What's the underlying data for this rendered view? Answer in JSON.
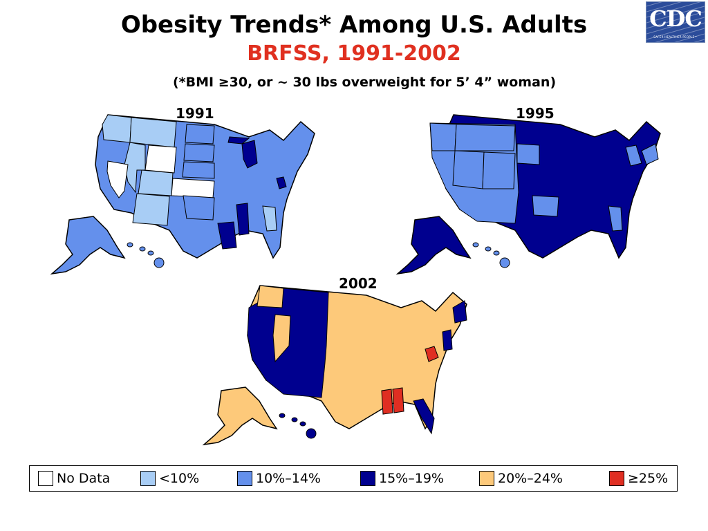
{
  "title": "Obesity Trends* Among U.S. Adults",
  "subtitle": "BRFSS, 1991-2002",
  "subtitle_color": "#e03020",
  "note": "(*BMI ≥30, or ~ 30 lbs overweight for 5’ 4” woman)",
  "logo": {
    "text": "CDC",
    "tagline": "SAFER·HEALTHIER·PEOPLE™",
    "color": "#2b4c9a"
  },
  "maps": [
    {
      "year": "1991"
    },
    {
      "year": "1995"
    },
    {
      "year": "2002"
    }
  ],
  "legend": [
    {
      "label": "No Data",
      "color": "#ffffff"
    },
    {
      "label": "<10%",
      "color": "#a8cdf5"
    },
    {
      "label": "10%–14%",
      "color": "#6490ec"
    },
    {
      "label": "15%–19%",
      "color": "#00008f"
    },
    {
      "label": "20%–24%",
      "color": "#fdc97a"
    },
    {
      "label": "≥25%",
      "color": "#e02e22"
    }
  ]
}
